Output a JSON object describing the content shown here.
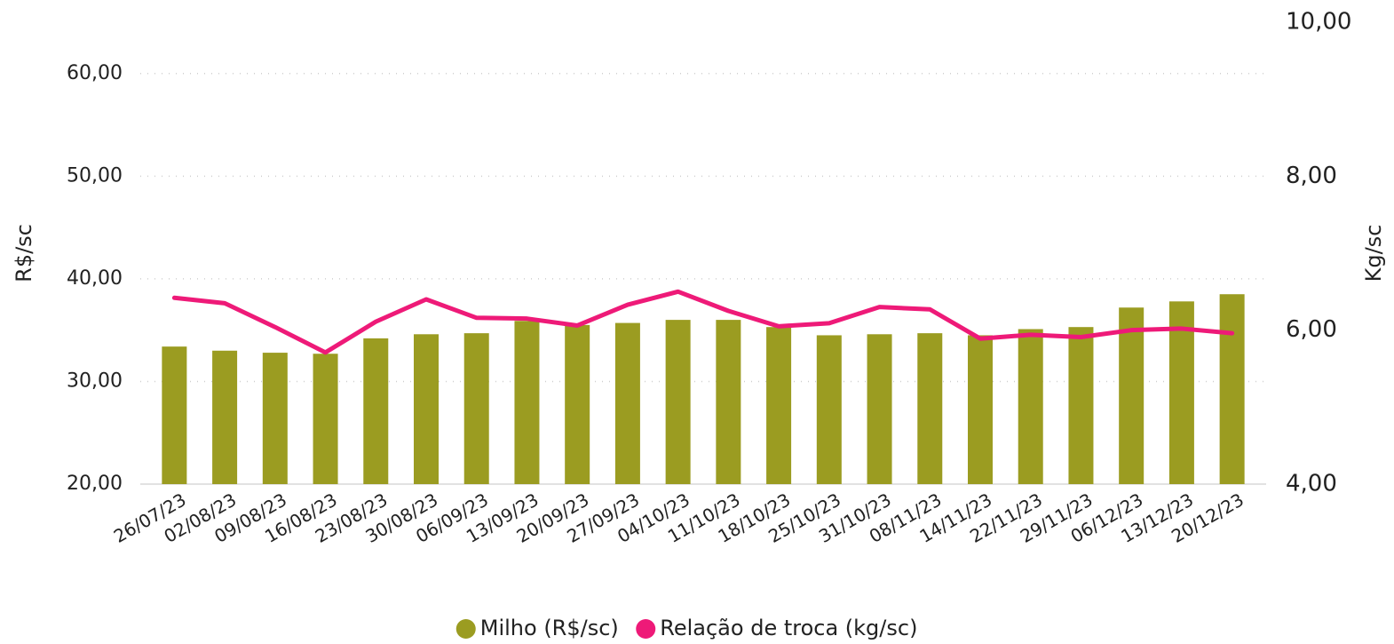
{
  "chart_data": {
    "type": "bar",
    "y_label": "R$/sc",
    "y2_label": "Kg/sc",
    "categories": [
      "26/07/23",
      "02/08/23",
      "09/08/23",
      "16/08/23",
      "23/08/23",
      "30/08/23",
      "06/09/23",
      "13/09/23",
      "20/09/23",
      "27/09/23",
      "04/10/23",
      "11/10/23",
      "18/10/23",
      "25/10/23",
      "31/10/23",
      "08/11/23",
      "14/11/23",
      "22/11/23",
      "29/11/23",
      "06/12/23",
      "13/12/23",
      "20/12/23"
    ],
    "series": [
      {
        "name": "Milho (R$/sc)",
        "type": "bar",
        "axis": "y",
        "color": "#9b9c21",
        "values": [
          33.4,
          33.0,
          32.8,
          32.7,
          34.2,
          34.6,
          34.7,
          35.9,
          35.5,
          35.7,
          36.0,
          36.0,
          35.3,
          34.5,
          34.6,
          34.7,
          34.5,
          35.1,
          35.3,
          37.2,
          37.8,
          38.5
        ]
      },
      {
        "name": "Relação de troca (kg/sc)",
        "type": "line",
        "axis": "y2",
        "color": "#ee1a78",
        "values": [
          6.42,
          6.35,
          6.04,
          5.71,
          6.11,
          6.4,
          6.16,
          6.15,
          6.06,
          6.33,
          6.5,
          6.25,
          6.05,
          6.09,
          6.3,
          6.27,
          5.89,
          5.94,
          5.91,
          6.0,
          6.02,
          5.96
        ]
      }
    ],
    "ylim": [
      20,
      65
    ],
    "yticks": [
      {
        "value": 20,
        "label": "20,00"
      },
      {
        "value": 30,
        "label": "30,00"
      },
      {
        "value": 40,
        "label": "40,00"
      },
      {
        "value": 50,
        "label": "50,00"
      },
      {
        "value": 60,
        "label": "60,00"
      }
    ],
    "y2lim": [
      4,
      10
    ],
    "y2ticks": [
      {
        "value": 4,
        "label": "4,00"
      },
      {
        "value": 6,
        "label": "6,00"
      },
      {
        "value": 8,
        "label": "8,00"
      },
      {
        "value": 10,
        "label": "10,00"
      }
    ],
    "grid": true,
    "legend": "bottom"
  }
}
